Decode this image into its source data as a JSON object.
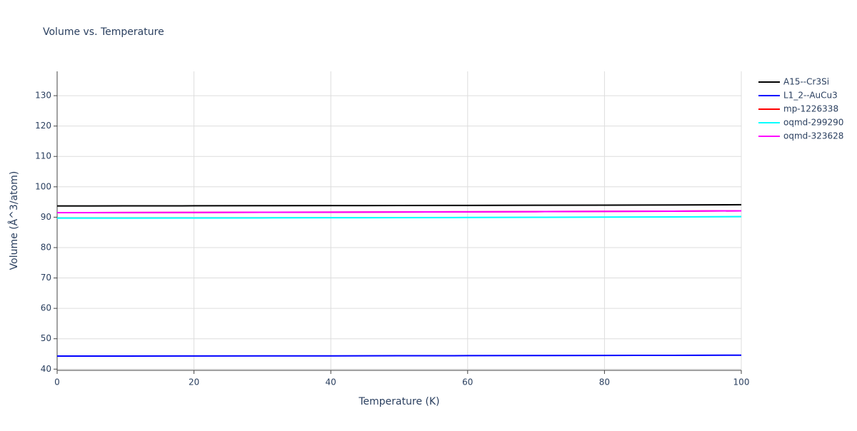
{
  "chart_data": {
    "type": "line",
    "title": "Volume vs. Temperature",
    "x_label": "Temperature (K)",
    "y_label": "Volume (Å^3/atom)",
    "x": [
      0,
      10,
      20,
      30,
      40,
      50,
      60,
      70,
      80,
      90,
      100
    ],
    "series": [
      {
        "name": "A15--Cr3Si",
        "color": "#000000",
        "values": [
          93.7,
          93.72,
          93.75,
          93.78,
          93.81,
          93.85,
          93.89,
          93.93,
          93.98,
          94.03,
          94.1
        ]
      },
      {
        "name": "L1_2--AuCu3",
        "color": "#0000ff",
        "values": [
          44.3,
          44.31,
          44.33,
          44.35,
          44.37,
          44.4,
          44.43,
          44.46,
          44.5,
          44.54,
          44.6
        ]
      },
      {
        "name": "mp-1226338",
        "color": "#ff0000",
        "values": [
          91.5,
          91.53,
          91.57,
          91.61,
          91.66,
          91.71,
          91.77,
          91.83,
          91.9,
          91.98,
          92.1
        ]
      },
      {
        "name": "oqmd-299290",
        "color": "#00ffff",
        "values": [
          89.7,
          89.72,
          89.75,
          89.78,
          89.82,
          89.86,
          89.91,
          89.96,
          90.02,
          90.09,
          90.2
        ]
      },
      {
        "name": "oqmd-323628",
        "color": "#ff00ff",
        "values": [
          91.5,
          91.53,
          91.57,
          91.61,
          91.66,
          91.71,
          91.77,
          91.83,
          91.9,
          91.98,
          92.1
        ]
      }
    ],
    "xlim": [
      0,
      100
    ],
    "xticks": [
      0,
      20,
      40,
      60,
      80,
      100
    ],
    "ylim": [
      39.6,
      138
    ],
    "yticks": [
      40,
      50,
      60,
      70,
      80,
      90,
      100,
      110,
      120,
      130
    ],
    "grid": true,
    "legend": "right"
  }
}
